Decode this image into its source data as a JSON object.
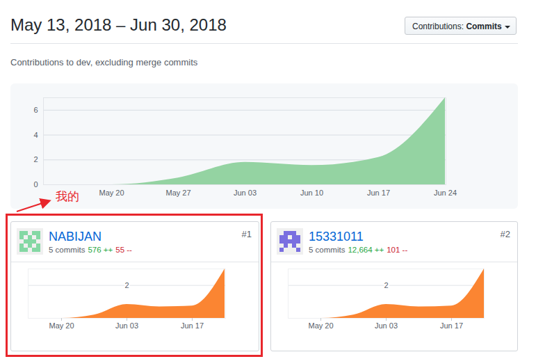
{
  "page": {
    "title": "May 13, 2018 – Jun 30, 2018",
    "button_label": "Contributions:",
    "button_value": "Commits",
    "subtitle": "Contributions to dev, excluding merge commits",
    "annotation": "我的"
  },
  "chart_data": [
    {
      "type": "area",
      "x": [
        "May 13",
        "May 20",
        "May 27",
        "Jun 03",
        "Jun 10",
        "Jun 17",
        "Jun 24"
      ],
      "values": [
        0,
        0,
        0.55,
        1.8,
        1.55,
        2.2,
        7
      ],
      "color": "#94d3a2",
      "ylim": [
        0,
        7
      ],
      "yticks": [
        0,
        2,
        4,
        6
      ],
      "xticks": [
        "May 20",
        "May 27",
        "Jun 03",
        "Jun 10",
        "Jun 17",
        "Jun 24"
      ],
      "grid": true
    },
    {
      "type": "area",
      "title": "NABIJAN",
      "rank": "#1",
      "commits": "5 commits",
      "additions": "576 ++",
      "deletions": "55 --",
      "x": [
        "May 13",
        "May 20",
        "May 27",
        "Jun 03",
        "Jun 10",
        "Jun 17",
        "Jun 24"
      ],
      "values": [
        0,
        0,
        0.2,
        0.85,
        0.7,
        0.75,
        3
      ],
      "color": "#fb8532",
      "ylim": [
        0,
        3
      ],
      "yticks": [
        2
      ],
      "xticks": [
        "May 20",
        "Jun 03",
        "Jun 17"
      ],
      "grid": true
    },
    {
      "type": "area",
      "title": "15331011",
      "rank": "#2",
      "commits": "5 commits",
      "additions": "12,664 ++",
      "deletions": "101 --",
      "x": [
        "May 13",
        "May 20",
        "May 27",
        "Jun 03",
        "Jun 10",
        "Jun 17",
        "Jun 24"
      ],
      "values": [
        0,
        0,
        0.2,
        0.85,
        0.7,
        0.75,
        3
      ],
      "color": "#fb8532",
      "ylim": [
        0,
        3
      ],
      "yticks": [
        2
      ],
      "xticks": [
        "May 20",
        "Jun 03",
        "Jun 17"
      ],
      "grid": true
    }
  ]
}
